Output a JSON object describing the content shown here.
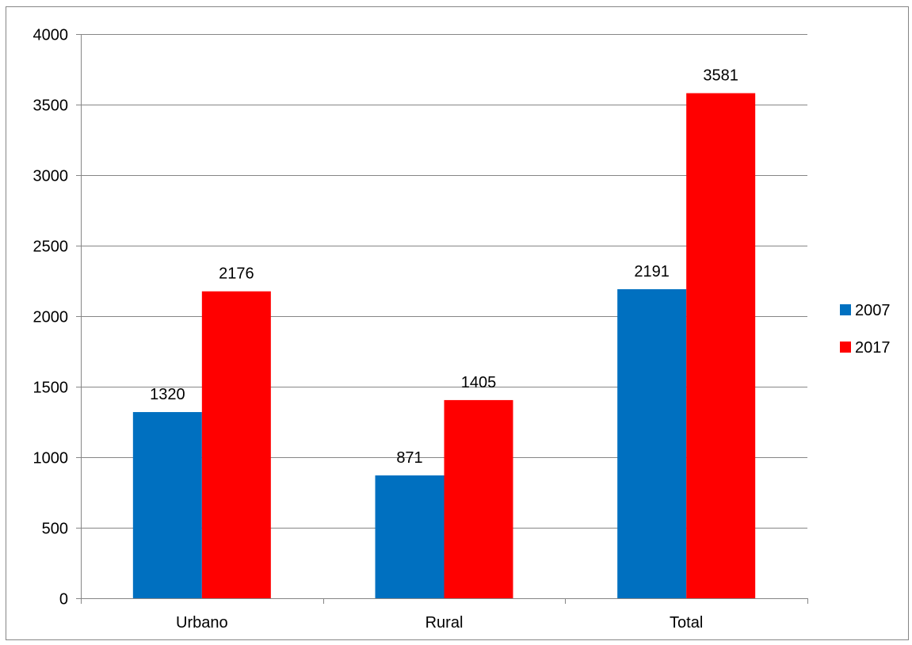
{
  "chart_data": {
    "type": "bar",
    "title": "",
    "xlabel": "",
    "ylabel": "",
    "categories": [
      "Urbano",
      "Rural",
      "Total"
    ],
    "series": [
      {
        "name": "2007",
        "values": [
          1320,
          871,
          2191
        ],
        "color": "#0070c0"
      },
      {
        "name": "2017",
        "values": [
          2176,
          1405,
          3581
        ],
        "color": "#ff0000"
      }
    ],
    "ylim": [
      0,
      4000
    ],
    "yticks": [
      "0",
      "500",
      "1000",
      "1500",
      "2000",
      "2500",
      "3000",
      "3500",
      "4000"
    ],
    "grid": true,
    "legend_position": "right",
    "data_labels": true,
    "gridline_color": "#868686",
    "border_color": "#868686"
  }
}
